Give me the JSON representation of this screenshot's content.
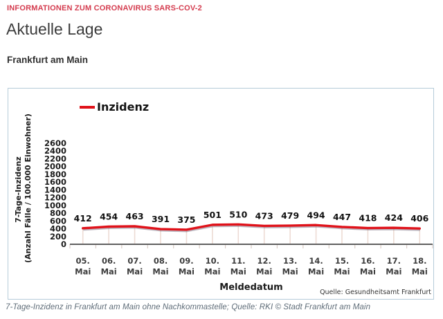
{
  "page": {
    "eyebrow": "INFORMATIONEN ZUM CORONAVIRUS SARS-COV-2",
    "title": "Aktuelle Lage",
    "subtitle": "Frankfurt am Main",
    "caption": "7-Tage-Inzidenz in Frankfurt am Main ohne Nachkommastelle; Quelle: RKI © Stadt Frankfurt am Main"
  },
  "colors": {
    "accent_red": "#d43b4e",
    "line_red": "#e0121a",
    "chart_border": "#b5cbd9",
    "axis_gray": "#5f5f5f"
  },
  "chart_data": {
    "type": "line",
    "legend": [
      {
        "name": "Inzidenz",
        "color": "#e0121a"
      }
    ],
    "categories": [
      "05. Mai",
      "06. Mai",
      "07. Mai",
      "08. Mai",
      "09. Mai",
      "10. Mai",
      "11. Mai",
      "12. Mai",
      "13. Mai",
      "14. Mai",
      "15. Mai",
      "16. Mai",
      "17. Mai",
      "18. Mai"
    ],
    "values": [
      412,
      454,
      463,
      391,
      375,
      501,
      510,
      473,
      479,
      494,
      447,
      418,
      424,
      406
    ],
    "xlabel": "Meldedatum",
    "ylabel_line1": "7-Tage-Inzidenz",
    "ylabel_line2": "(Anzahl Fälle / 100.000 Einwohner)",
    "ylim": [
      0,
      2600
    ],
    "ytick_step": 200,
    "grid": false,
    "legend_position": "top-left",
    "source": "Quelle: Gesundheitsamt Frankfurt"
  }
}
